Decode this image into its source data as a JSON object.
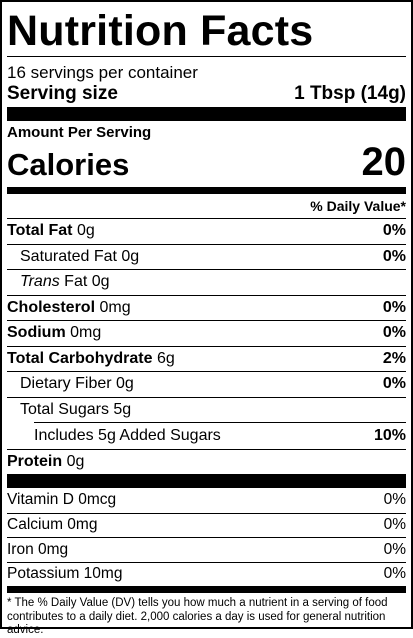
{
  "title": "Nutrition Facts",
  "servings_per_container": "16 servings per container",
  "serving_size": {
    "label": "Serving size",
    "value": "1 Tbsp (14g)"
  },
  "amount_per_serving": "Amount Per Serving",
  "calories": {
    "label": "Calories",
    "value": "20"
  },
  "daily_value_header": "% Daily Value*",
  "nutrients": {
    "total_fat": {
      "name": "Total Fat",
      "amount": "0g",
      "dv": "0%"
    },
    "saturated_fat": {
      "name": "Saturated Fat 0g",
      "dv": "0%"
    },
    "trans_fat": {
      "name_italic": "Trans",
      "name_rest": " Fat 0g"
    },
    "cholesterol": {
      "name": "Cholesterol",
      "amount": "0mg",
      "dv": "0%"
    },
    "sodium": {
      "name": "Sodium",
      "amount": "0mg",
      "dv": "0%"
    },
    "total_carbohydrate": {
      "name": "Total Carbohydrate",
      "amount": "6g",
      "dv": "2%"
    },
    "dietary_fiber": {
      "name": "Dietary Fiber 0g",
      "dv": "0%"
    },
    "total_sugars": {
      "name": "Total Sugars 5g"
    },
    "added_sugars": {
      "name": "Includes 5g Added Sugars",
      "dv": "10%"
    },
    "protein": {
      "name": "Protein",
      "amount": "0g"
    }
  },
  "vitamins": [
    {
      "name": "Vitamin D 0mcg",
      "dv": "0%"
    },
    {
      "name": "Calcium 0mg",
      "dv": "0%"
    },
    {
      "name": "Iron 0mg",
      "dv": "0%"
    },
    {
      "name": "Potassium 10mg",
      "dv": "0%"
    }
  ],
  "footnote": "* The % Daily Value (DV) tells you how much a nutrient in a serving of food contributes to a daily diet. 2,000 calories a day is used for general nutrition advice."
}
